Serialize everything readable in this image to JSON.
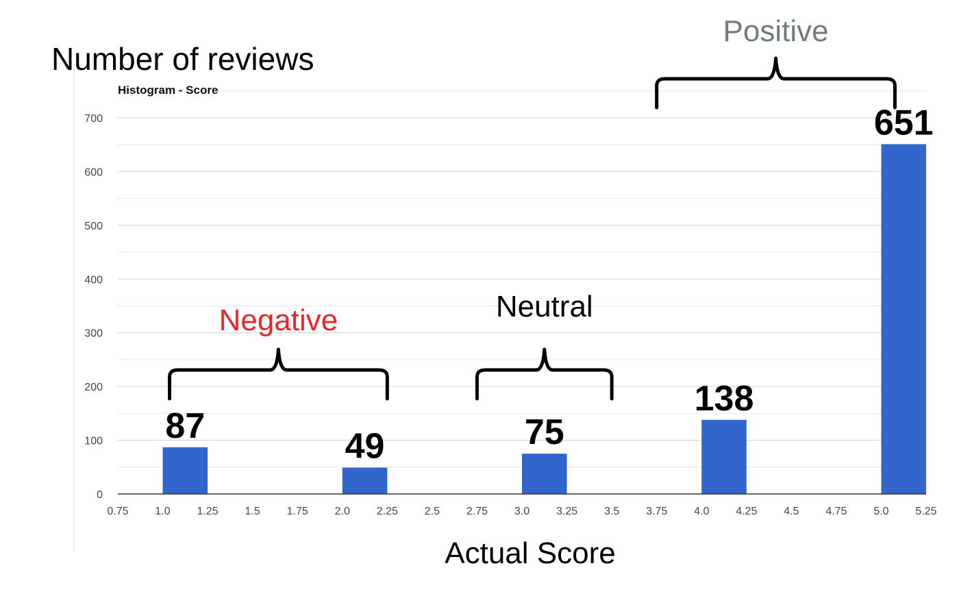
{
  "chart_data": {
    "type": "bar",
    "title": "Histogram - Score",
    "ylabel": "Number of reviews",
    "xlabel": "Actual Score",
    "bars": [
      {
        "x": 1.0,
        "value": 87,
        "label": "87"
      },
      {
        "x": 2.0,
        "value": 49,
        "label": "49"
      },
      {
        "x": 3.0,
        "value": 75,
        "label": "75"
      },
      {
        "x": 4.0,
        "value": 138,
        "label": "138"
      },
      {
        "x": 5.0,
        "value": 651,
        "label": "651"
      }
    ],
    "bin_width": 0.25,
    "xlim": [
      0.75,
      5.25
    ],
    "ylim": [
      0,
      750
    ],
    "xticks": [
      "0.75",
      "1.0",
      "1.25",
      "1.5",
      "1.75",
      "2.0",
      "2.25",
      "2.5",
      "2.75",
      "3.0",
      "3.25",
      "3.5",
      "3.75",
      "4.0",
      "4.25",
      "4.5",
      "4.75",
      "5.0",
      "5.25"
    ],
    "yticks": [
      "0",
      "100",
      "200",
      "300",
      "400",
      "500",
      "600",
      "700"
    ],
    "grid": true,
    "bar_color": "#3366cc",
    "groups": [
      {
        "label": "Negative",
        "color": "#e8262b",
        "range": [
          1.0,
          2.25
        ]
      },
      {
        "label": "Neutral",
        "color": "#000000",
        "range": [
          2.75,
          3.5
        ]
      },
      {
        "label": "Positive",
        "color": "#6f7f6f",
        "range": [
          3.75,
          5.0
        ]
      }
    ]
  }
}
